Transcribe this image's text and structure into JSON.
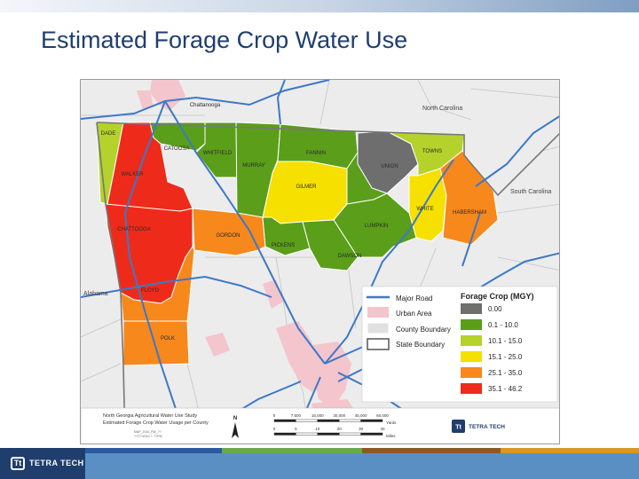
{
  "slide": {
    "title": "Estimated Forage Crop Water Use"
  },
  "map": {
    "counties": {
      "dade": "DADE",
      "catoosa": "CATOOSA",
      "whitfield": "WHITFIELD",
      "murray": "MURRAY",
      "fannin": "FANNIN",
      "union": "UNION",
      "towns": "TOWNS",
      "walker": "WALKER",
      "gilmer": "GILMER",
      "white": "WHITE",
      "habersham": "HABERSHAM",
      "chattooga": "CHATTOOGA",
      "gordon": "GORDON",
      "lumpkin": "LUMPKIN",
      "pickens": "PICKENS",
      "dawson": "DAWSON",
      "floyd": "FLOYD",
      "polk": "POLK",
      "chattanooga": "Chattanooga"
    },
    "states": {
      "north_carolina": "North Carolina",
      "south_carolina": "South Carolina",
      "alabama": "Alabama"
    },
    "colors": {
      "gray": "#6e6e6e",
      "green": "#5a9e1a",
      "lime": "#b5d22c",
      "yellow": "#f5e000",
      "orange": "#f7881c",
      "red": "#ee2b1a",
      "urban": "#f4c5cc",
      "road": "#3c78c8",
      "background": "#ececec"
    },
    "legend": {
      "major_road": "Major Road",
      "urban_area": "Urban Area",
      "county_boundary": "County Boundary",
      "state_boundary": "State Boundary",
      "title": "Forage Crop (MGY)",
      "classes": [
        {
          "label": "0.00",
          "color": "#6e6e6e"
        },
        {
          "label": "0.1 - 10.0",
          "color": "#5a9e1a"
        },
        {
          "label": "10.1 - 15.0",
          "color": "#b5d22c"
        },
        {
          "label": "15.1 - 25.0",
          "color": "#f5e000"
        },
        {
          "label": "25.1 - 35.0",
          "color": "#f7881c"
        },
        {
          "label": "35.1 - 46.2",
          "color": "#ee2b1a"
        }
      ]
    },
    "titleblock": {
      "line1": "North Georgia Agricultural Water Use Study",
      "line2": "Estimated Forage Crop Water Usage per County",
      "small1": "MAP_2010_FW_??",
      "small2": "??/??/2010 ?. ??PM",
      "north": "N",
      "scale_top_ticks": [
        "0",
        "7,500",
        "15,000",
        "30,000",
        "45,000",
        "60,000"
      ],
      "scale_top_unit": "Yards",
      "scale_bottom_ticks": [
        "0",
        "5",
        "10",
        "20",
        "30",
        "40"
      ],
      "scale_bottom_unit": "Miles",
      "company": "TETRA TECH"
    }
  },
  "footer": {
    "company": "TETRA TECH",
    "mark": "Tt"
  }
}
